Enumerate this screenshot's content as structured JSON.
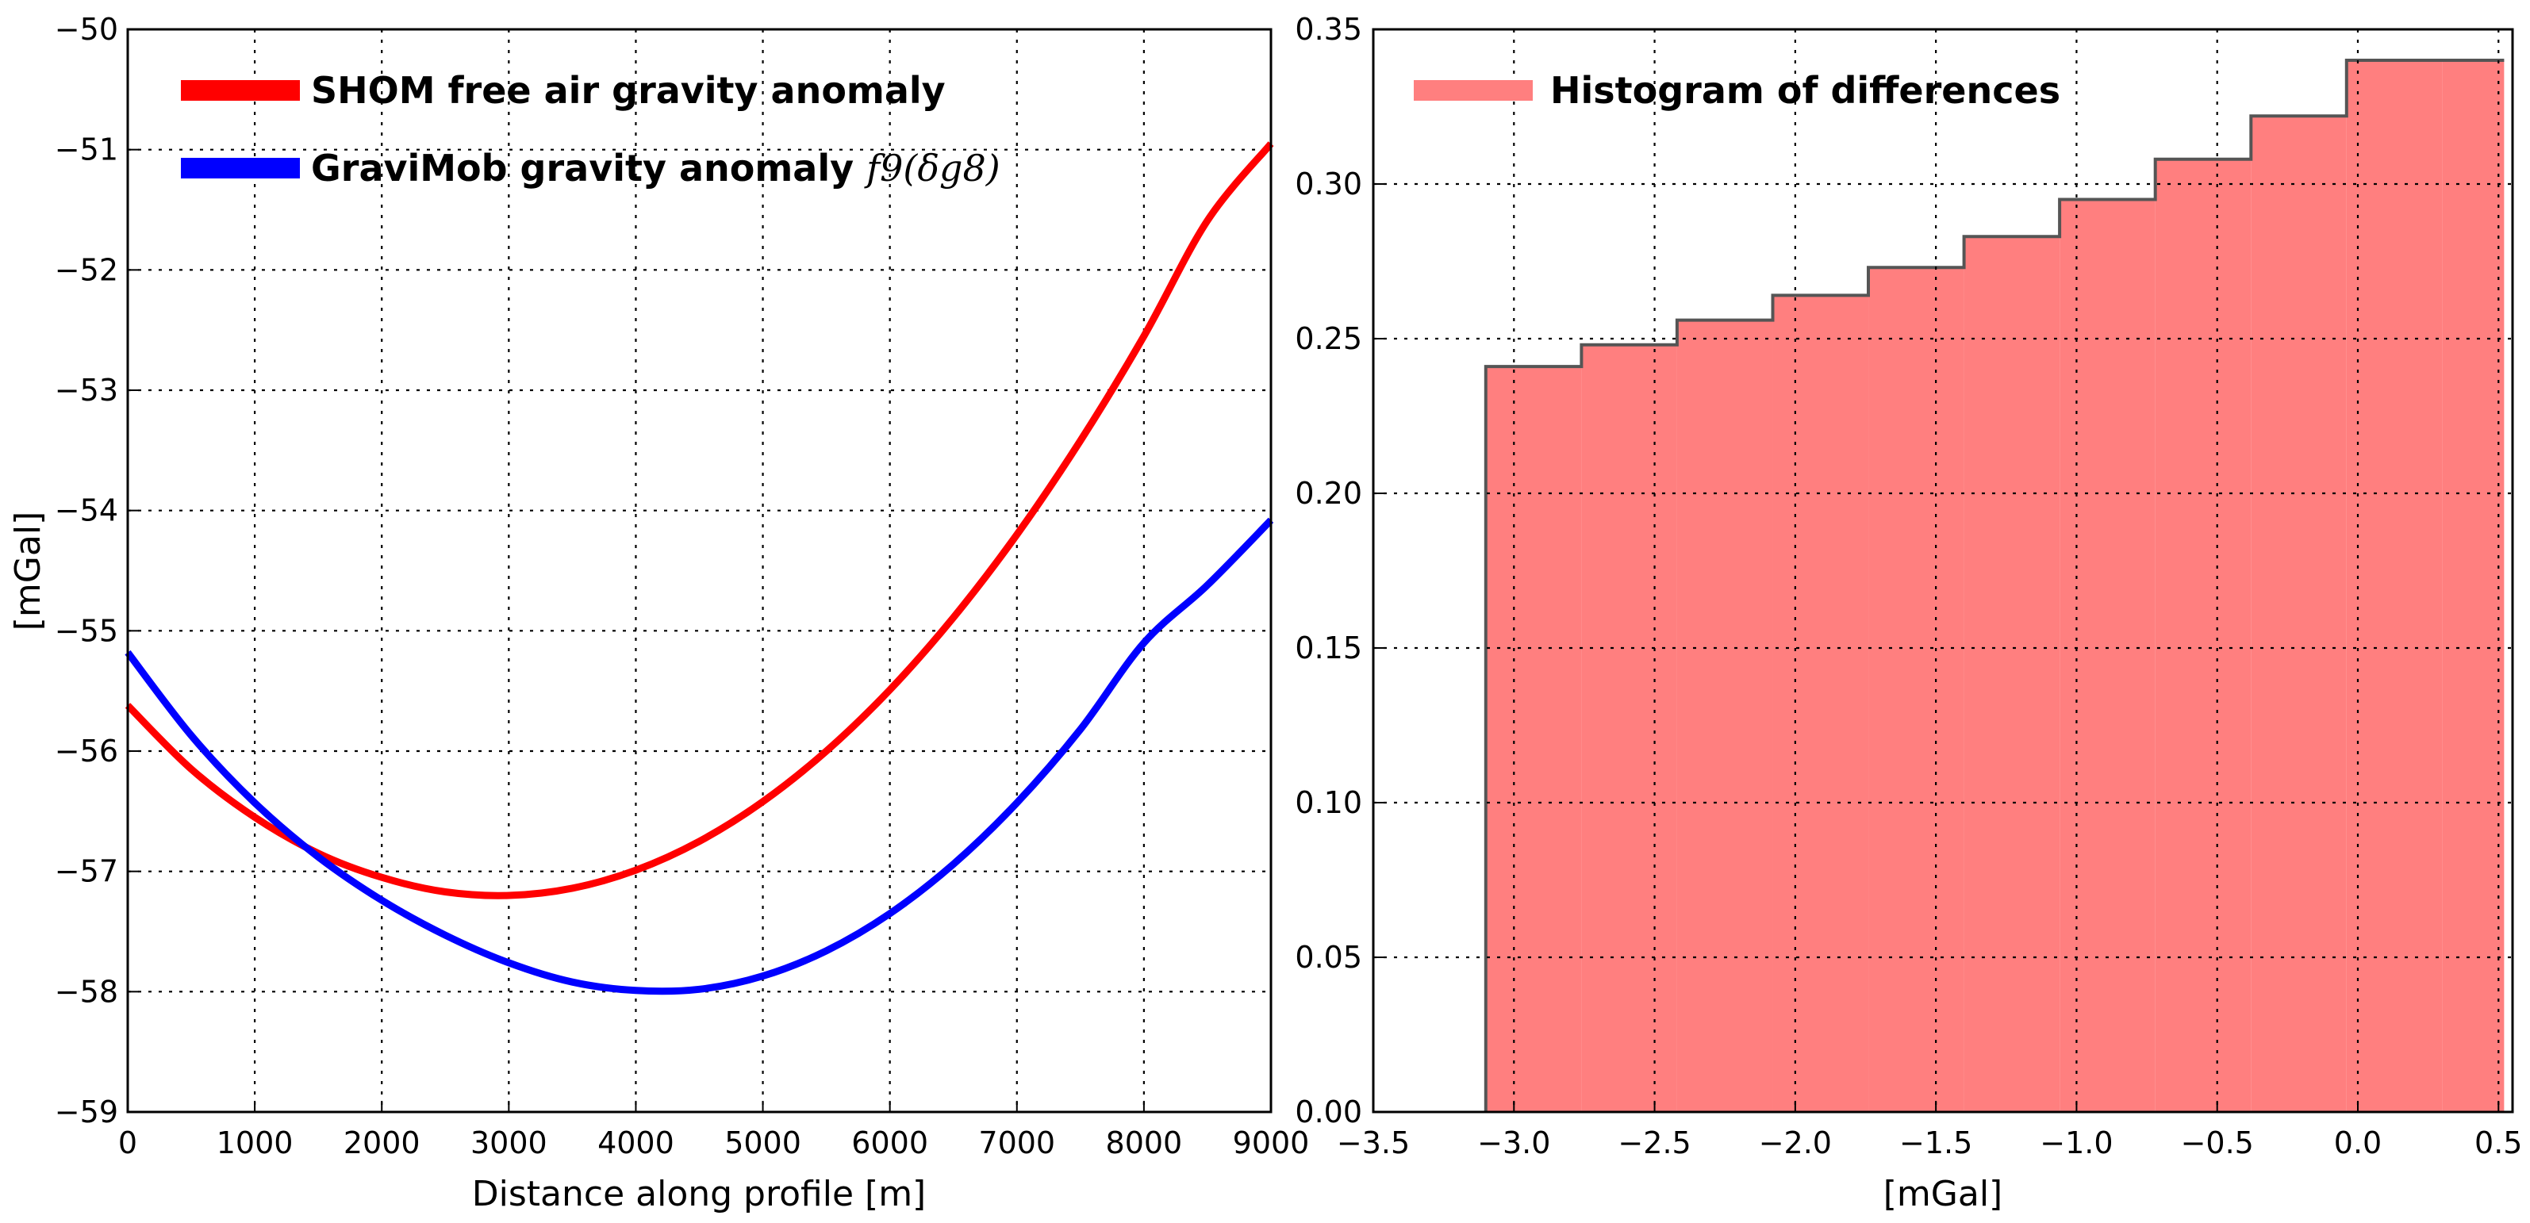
{
  "colors": {
    "shom": "#ff0000",
    "gravimob": "#0000ff",
    "hist_fill": "#ff7f7f",
    "hist_edge": "#555555"
  },
  "chart_data": [
    {
      "type": "line",
      "title": "",
      "xlabel": "Distance along profile [m]",
      "ylabel": "[mGal]",
      "xlim": [
        0,
        9000
      ],
      "ylim": [
        -59,
        -50
      ],
      "grid": true,
      "legend_position": "top-left",
      "xticks": [
        "0",
        "1000",
        "2000",
        "3000",
        "4000",
        "5000",
        "6000",
        "7000",
        "8000",
        "9000"
      ],
      "yticks": [
        "−59",
        "−58",
        "−57",
        "−56",
        "−55",
        "−54",
        "−53",
        "−52",
        "−51",
        "−50"
      ],
      "series": [
        {
          "name": "SHOM free air gravity anomaly",
          "legend": "SHOM free air gravity anomaly",
          "color": "#ff0000",
          "x": [
            0,
            500,
            1000,
            1500,
            2000,
            2500,
            3000,
            3500,
            4000,
            4500,
            5000,
            5500,
            6000,
            6500,
            7000,
            7500,
            8000,
            8500,
            9000
          ],
          "y": [
            -55.62,
            -56.15,
            -56.55,
            -56.85,
            -57.05,
            -57.17,
            -57.2,
            -57.14,
            -56.99,
            -56.75,
            -56.42,
            -56.0,
            -55.49,
            -54.89,
            -54.2,
            -53.42,
            -52.55,
            -51.59,
            -50.95
          ]
        },
        {
          "name": "GraviMob gravity anomaly",
          "legend": "GraviMob gravity anomaly",
          "math": "f9(δg8)",
          "color": "#0000ff",
          "x": [
            0,
            500,
            1000,
            1500,
            2000,
            2500,
            3000,
            3500,
            4000,
            4500,
            5000,
            5500,
            6000,
            6500,
            7000,
            7500,
            8000,
            8500,
            9000
          ],
          "y": [
            -55.18,
            -55.87,
            -56.43,
            -56.88,
            -57.24,
            -57.53,
            -57.76,
            -57.92,
            -57.99,
            -57.98,
            -57.87,
            -57.66,
            -57.35,
            -56.94,
            -56.43,
            -55.82,
            -55.1,
            -54.62,
            -54.08
          ]
        }
      ]
    },
    {
      "type": "bar",
      "title": "",
      "xlabel": "[mGal]",
      "ylabel": "",
      "xlim": [
        -3.5,
        0.55
      ],
      "ylim": [
        0,
        0.35
      ],
      "grid": true,
      "legend_position": "top-left",
      "xticks": [
        "−3.5",
        "−3.0",
        "−2.5",
        "−2.0",
        "−1.5",
        "−1.0",
        "−0.5",
        "0.0",
        "0.5"
      ],
      "yticks": [
        "0.00",
        "0.05",
        "0.10",
        "0.15",
        "0.20",
        "0.25",
        "0.30",
        "0.35"
      ],
      "series": [
        {
          "name": "Histogram of differences",
          "legend": "Histogram of differences",
          "color": "#ff7f7f",
          "bin_edges": [
            -3.1,
            -2.76,
            -2.42,
            -2.08,
            -1.74,
            -1.4,
            -1.06,
            -0.72,
            -0.38,
            -0.04,
            0.3,
            0.52
          ],
          "values": [
            0.241,
            0.248,
            0.256,
            0.264,
            0.273,
            0.283,
            0.295,
            0.308,
            0.322,
            0.34,
            0.34
          ]
        }
      ]
    }
  ]
}
